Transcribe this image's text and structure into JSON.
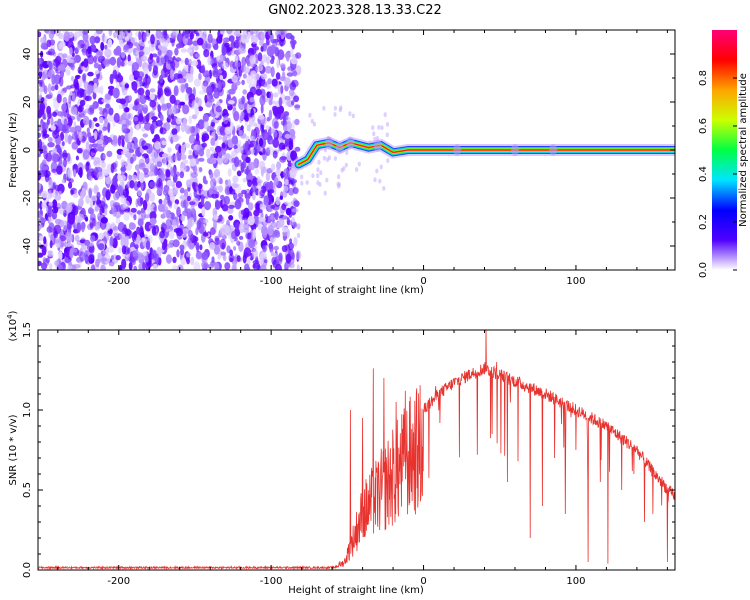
{
  "title": "GN02.2023.328.13.33.C22",
  "chart_data": [
    {
      "type": "heatmap",
      "xlabel": "Height of straight line (km)",
      "ylabel": "Frequency (Hz)",
      "xlim": [
        -253,
        165
      ],
      "ylim": [
        -50,
        50
      ],
      "x_ticks": [
        -200,
        -100,
        0,
        100
      ],
      "x_tick_labels": [
        "-200",
        "-100",
        "0",
        "100"
      ],
      "y_ticks": [
        -40,
        -20,
        0,
        20,
        40
      ],
      "y_tick_labels": [
        "-40",
        "-20",
        "0",
        "20",
        "40"
      ],
      "noise_region_x": [
        -253,
        -82
      ],
      "tonal_line": {
        "x_start": -82,
        "x_end": 165,
        "freq_points": [
          [
            -82,
            -6
          ],
          [
            -76,
            -4
          ],
          [
            -70,
            2
          ],
          [
            -62,
            3
          ],
          [
            -55,
            1
          ],
          [
            -48,
            3
          ],
          [
            -42,
            2
          ],
          [
            -36,
            1
          ],
          [
            -28,
            2
          ],
          [
            -20,
            -1
          ],
          [
            -10,
            0
          ],
          [
            0,
            0
          ],
          [
            22,
            0
          ],
          [
            60,
            0
          ],
          [
            100,
            0
          ],
          [
            165,
            0
          ]
        ]
      },
      "colorbar": {
        "label": "Normalized spectral amplitude",
        "range": [
          0,
          1
        ],
        "ticks": [
          0.0,
          0.2,
          0.4,
          0.6,
          0.8
        ],
        "tick_labels": [
          "0.0",
          "0.2",
          "0.4",
          "0.6",
          "0.8"
        ],
        "colormap": [
          "#ffffff",
          "#5000ff",
          "#0000ff",
          "#00e5ff",
          "#00ff44",
          "#ccff00",
          "#ffa500",
          "#ff0000",
          "#ff0077"
        ]
      }
    },
    {
      "type": "line",
      "xlabel": "Height of straight line (km)",
      "ylabel": "SNR (10 * v/v)",
      "y_multiplier_label": "(x10",
      "y_multiplier_exp": "4",
      "xlim": [
        -253,
        165
      ],
      "ylim": [
        0,
        1.5
      ],
      "x_ticks": [
        -200,
        -100,
        0,
        100
      ],
      "x_tick_labels": [
        "-200",
        "-100",
        "0",
        "100"
      ],
      "y_ticks": [
        0.0,
        0.5,
        1.0,
        1.5
      ],
      "y_tick_labels": [
        "0.0",
        "0.5",
        "1.0",
        "1.5"
      ],
      "color": "#e8322e",
      "envelope": {
        "x": [
          -253,
          -60,
          -52,
          -46,
          -40,
          -30,
          -20,
          -10,
          0,
          10,
          20,
          30,
          40,
          50,
          60,
          80,
          100,
          120,
          140,
          150,
          165
        ],
        "y": [
          0.015,
          0.015,
          0.06,
          0.25,
          0.45,
          0.6,
          0.75,
          0.9,
          1.0,
          1.1,
          1.17,
          1.22,
          1.26,
          1.22,
          1.18,
          1.1,
          1.0,
          0.9,
          0.75,
          0.62,
          0.45
        ]
      },
      "spikes": [
        {
          "x": -48,
          "y": 1.0
        },
        {
          "x": -40,
          "y": 0.95
        },
        {
          "x": -33,
          "y": 1.26
        },
        {
          "x": -26,
          "y": 1.2
        },
        {
          "x": -18,
          "y": 1.05
        },
        {
          "x": -12,
          "y": 1.12
        },
        {
          "x": 8,
          "y": 1.15
        },
        {
          "x": 20,
          "y": 1.2
        },
        {
          "x": 30,
          "y": 1.25
        },
        {
          "x": 41,
          "y": 1.52
        },
        {
          "x": 48,
          "y": 1.3
        }
      ],
      "dips": [
        {
          "x": 45,
          "y": 0.85
        },
        {
          "x": 55,
          "y": 0.55
        },
        {
          "x": 62,
          "y": 0.68
        },
        {
          "x": 70,
          "y": 0.2
        },
        {
          "x": 78,
          "y": 0.4
        },
        {
          "x": 86,
          "y": 0.7
        },
        {
          "x": 93,
          "y": 0.35
        },
        {
          "x": 100,
          "y": 0.75
        },
        {
          "x": 108,
          "y": 0.05
        },
        {
          "x": 116,
          "y": 0.55
        },
        {
          "x": 121,
          "y": 0.04
        },
        {
          "x": 130,
          "y": 0.5
        },
        {
          "x": 138,
          "y": 0.6
        },
        {
          "x": 145,
          "y": 0.3
        },
        {
          "x": 160,
          "y": 0.05
        }
      ]
    }
  ]
}
